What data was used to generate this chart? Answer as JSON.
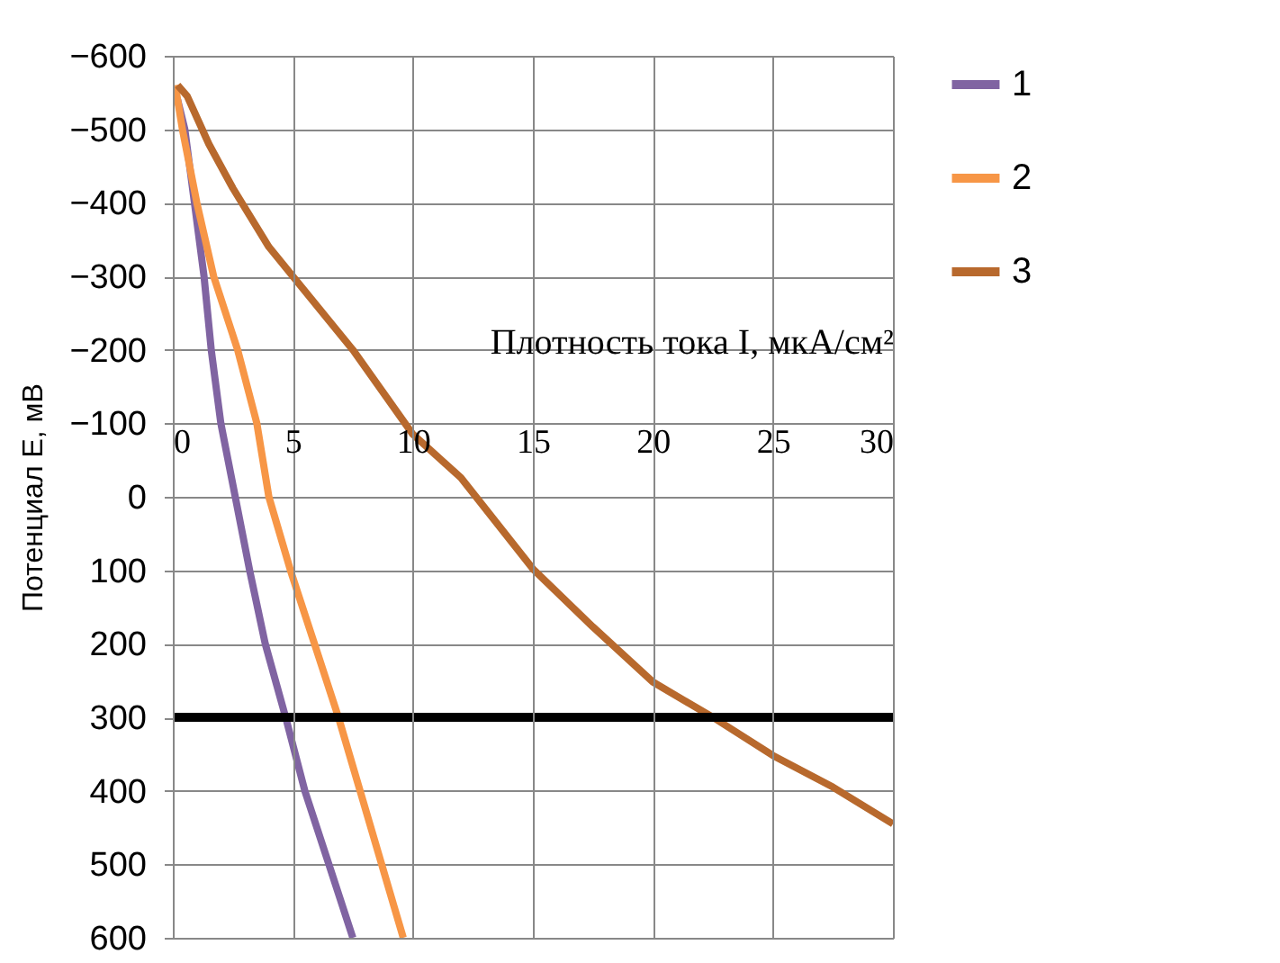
{
  "chart_data": {
    "type": "line",
    "xlabel": "Плотность тока I, мкА/см²",
    "ylabel": "Потенциал E, мВ",
    "xlim": [
      0,
      30
    ],
    "xticks": [
      0,
      5,
      10,
      15,
      20,
      25,
      30
    ],
    "ylim": [
      600,
      -600
    ],
    "yticks": [
      -600,
      -500,
      -400,
      -300,
      -200,
      -100,
      0,
      100,
      200,
      300,
      400,
      500,
      600
    ],
    "grid": true,
    "legend": "right",
    "series": [
      {
        "name": "1",
        "color": "#8064a2",
        "x": [
          0.2,
          0.5,
          0.9,
          1.3,
          1.6,
          2.0,
          2.6,
          3.2,
          3.85,
          4.7,
          5.5,
          6.5,
          7.5
        ],
        "values": [
          -540,
          -500,
          -400,
          -300,
          -200,
          -100,
          0,
          100,
          200,
          300,
          400,
          500,
          600
        ]
      },
      {
        "name": "2",
        "color": "#f79646",
        "x": [
          0.1,
          0.4,
          1.0,
          1.7,
          2.7,
          3.5,
          4.0,
          4.9,
          5.9,
          6.9,
          7.8,
          8.7,
          9.6
        ],
        "values": [
          -560,
          -500,
          -400,
          -300,
          -200,
          -100,
          0,
          100,
          200,
          300,
          400,
          500,
          600
        ]
      },
      {
        "name": "3",
        "color": "#b8692d",
        "x": [
          0.2,
          0.6,
          1.5,
          2.5,
          4.0,
          5.0,
          7.5,
          10.0,
          12.0,
          15.0,
          17.5,
          20.0,
          22.5,
          25.0,
          27.5,
          30.0
        ],
        "values": [
          -560,
          -545,
          -480,
          -420,
          -340,
          -300,
          -200,
          -85,
          -26,
          98,
          177,
          252,
          300,
          352,
          395,
          445
        ]
      }
    ],
    "ref_lines": [
      {
        "axis": "y",
        "value": 300,
        "color": "#000000"
      }
    ]
  }
}
